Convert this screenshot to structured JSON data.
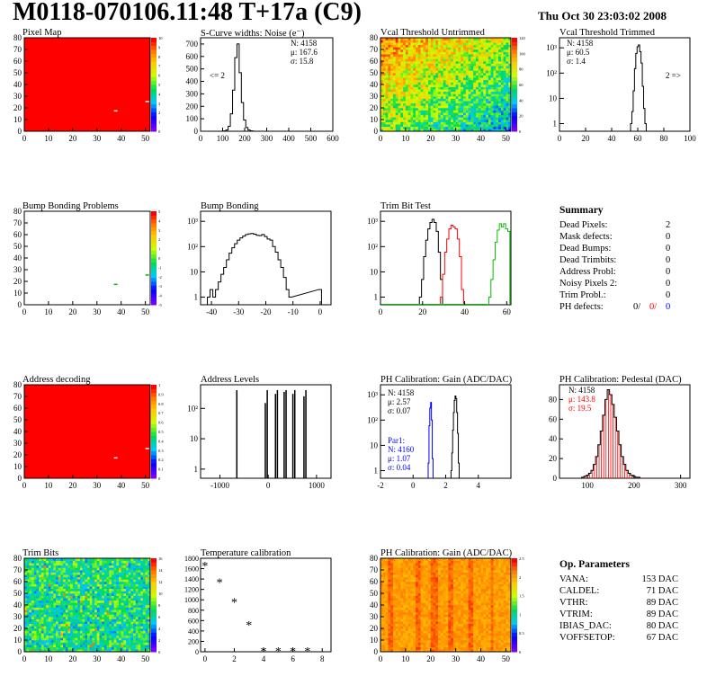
{
  "header": {
    "title": "M0118-070106.11:48 T+17a (C9)",
    "date": "Thu Oct 30 23:03:02 2008"
  },
  "colors": {
    "red": "#ff0000",
    "blue": "#0000ff",
    "black": "#000000",
    "green": "#00c000"
  },
  "panels": {
    "pixel_map": {
      "title": "Pixel Map"
    },
    "scurve": {
      "title": "S-Curve widths: Noise (e⁻)",
      "stats": [
        "N: 4158",
        "μ: 167.6",
        "σ: 15.8"
      ],
      "arrow": "<= 2"
    },
    "vcal_untrimmed": {
      "title": "Vcal Threshold Untrimmed"
    },
    "vcal_trimmed": {
      "title": "Vcal Threshold Trimmed",
      "stats": [
        "N: 4158",
        "μ: 60.5",
        "σ: 1.4"
      ],
      "arrow": "2 =>"
    },
    "bump_problems": {
      "title": "Bump Bonding Problems"
    },
    "bump_bonding": {
      "title": "Bump Bonding"
    },
    "trim_bit_test": {
      "title": "Trim Bit Test"
    },
    "address_decoding": {
      "title": "Address decoding"
    },
    "address_levels": {
      "title": "Address Levels"
    },
    "ph_gain_hist": {
      "title": "PH Calibration: Gain (ADC/DAC)",
      "stats": [
        "N: 4158",
        "μ: 2.57",
        "σ: 0.07"
      ],
      "par1": [
        "Par1:",
        "N: 4160",
        "μ: 1.07",
        "σ: 0.04"
      ]
    },
    "ph_pedestal": {
      "title": "PH Calibration: Pedestal (DAC)",
      "stats": [
        "N: 4158",
        "μ: 143.8",
        "σ: 19.5"
      ]
    },
    "trim_bits": {
      "title": "Trim Bits"
    },
    "temperature": {
      "title": "Temperature calibration"
    },
    "ph_gain_map": {
      "title": "PH Calibration: Gain (ADC/DAC)"
    }
  },
  "summary": {
    "heading": "Summary",
    "rows": [
      {
        "label": "Dead Pixels:",
        "value": "2"
      },
      {
        "label": "Mask defects:",
        "value": "0"
      },
      {
        "label": "Dead Bumps:",
        "value": "0"
      },
      {
        "label": "Dead Trimbits:",
        "value": "0"
      },
      {
        "label": "Address Probl:",
        "value": "0"
      },
      {
        "label": "Noisy Pixels 2:",
        "value": "0"
      },
      {
        "label": "Trim Probl.:",
        "value": "0"
      }
    ],
    "ph_defects": {
      "label": "PH defects:",
      "v1": "0/",
      "v2": "0/",
      "v3": "0"
    }
  },
  "op_params": {
    "heading": "Op. Parameters",
    "rows": [
      {
        "label": "VANA:",
        "value": "153 DAC"
      },
      {
        "label": "CALDEL:",
        "value": "71 DAC"
      },
      {
        "label": "VTHR:",
        "value": "89 DAC"
      },
      {
        "label": "VTRIM:",
        "value": "89 DAC"
      },
      {
        "label": "IBIAS_DAC:",
        "value": "80 DAC"
      },
      {
        "label": "VOFFSETOP:",
        "value": "67 DAC"
      }
    ]
  },
  "chart_data": [
    {
      "id": "pixel_map",
      "type": "heatmap",
      "x_ticks": [
        "0",
        "10",
        "20",
        "30",
        "40",
        "50"
      ],
      "y_ticks": [
        "0",
        "10",
        "20",
        "30",
        "40",
        "50",
        "60",
        "70",
        "80"
      ],
      "z_ticks": [
        "0",
        "1",
        "2",
        "3",
        "4",
        "5",
        "6",
        "7",
        "8",
        "9",
        "10"
      ],
      "dead_pixels": [
        [
          37,
          18
        ],
        [
          50,
          26
        ]
      ]
    },
    {
      "id": "scurve",
      "type": "bar",
      "x_ticks": [
        "0",
        "100",
        "200",
        "300",
        "400",
        "500",
        "600"
      ],
      "y_ticks": [
        "0",
        "100",
        "200",
        "300",
        "400",
        "500",
        "600",
        "700"
      ],
      "xlim": [
        0,
        600
      ],
      "ylim": [
        0,
        750
      ],
      "x": [
        100,
        110,
        120,
        130,
        140,
        150,
        160,
        170,
        180,
        190,
        200,
        210,
        220,
        230,
        240,
        250
      ],
      "values": [
        0,
        3,
        10,
        40,
        140,
        330,
        590,
        700,
        470,
        230,
        90,
        30,
        10,
        4,
        1,
        0
      ]
    },
    {
      "id": "vcal_untrimmed",
      "type": "heatmap",
      "x_ticks": [
        "0",
        "10",
        "20",
        "30",
        "40",
        "50"
      ],
      "y_ticks": [
        "0",
        "10",
        "20",
        "30",
        "40",
        "50",
        "60",
        "70",
        "80"
      ],
      "z_ticks": [
        "0",
        "20",
        "40",
        "60",
        "80",
        "100",
        "120"
      ]
    },
    {
      "id": "vcal_trimmed",
      "type": "bar",
      "x_ticks": [
        "0",
        "20",
        "40",
        "60",
        "80",
        "100"
      ],
      "y_ticks": [
        "1",
        "10",
        "10²",
        "10³"
      ],
      "scale_y": "log",
      "xlim": [
        0,
        100
      ],
      "ylim": [
        0.5,
        2500
      ],
      "x": [
        55,
        56,
        57,
        58,
        59,
        60,
        61,
        62,
        63,
        64,
        65,
        66
      ],
      "values": [
        1,
        3,
        20,
        150,
        600,
        1100,
        1300,
        700,
        250,
        30,
        4,
        1
      ]
    },
    {
      "id": "bump_problems",
      "type": "heatmap",
      "x_ticks": [
        "0",
        "10",
        "20",
        "30",
        "40",
        "50"
      ],
      "y_ticks": [
        "0",
        "10",
        "20",
        "30",
        "40",
        "50",
        "60",
        "70",
        "80"
      ],
      "z_ticks": [
        "-5",
        "-4",
        "-3",
        "-2",
        "-1",
        "0",
        "1",
        "2",
        "3",
        "4",
        "5"
      ],
      "marks": [
        [
          37,
          18
        ],
        [
          50,
          26
        ]
      ]
    },
    {
      "id": "bump_bonding",
      "type": "bar",
      "x_ticks": [
        "-40",
        "-30",
        "-20",
        "-10",
        "0"
      ],
      "y_ticks": [
        "1",
        "10",
        "10²",
        "10³"
      ],
      "scale_y": "log",
      "xlim": [
        -44,
        4
      ],
      "ylim": [
        0.5,
        2500
      ],
      "x": [
        -41,
        -40,
        -39,
        -38,
        -37,
        -36,
        -35,
        -34,
        -33,
        -32,
        -31,
        -30,
        -29,
        -28,
        -27,
        -26,
        -25,
        -24,
        -23,
        -22,
        -21,
        -20,
        -19,
        -18,
        -17,
        -16,
        -15,
        -14,
        -13,
        -12,
        -11,
        0
      ],
      "values": [
        1,
        2,
        1,
        2,
        4,
        8,
        15,
        30,
        55,
        90,
        130,
        180,
        220,
        260,
        300,
        320,
        330,
        310,
        280,
        270,
        300,
        250,
        200,
        180,
        100,
        60,
        30,
        15,
        6,
        2,
        1,
        2
      ]
    },
    {
      "id": "trim_bit_test",
      "type": "bar",
      "x_ticks": [
        "0",
        "20",
        "40",
        "60"
      ],
      "y_ticks": [
        "1",
        "10",
        "10²",
        "10³"
      ],
      "scale_y": "log",
      "xlim": [
        0,
        62
      ],
      "ylim": [
        0.5,
        2500
      ],
      "series": [
        {
          "name": "",
          "color": "#00c000",
          "x": [
            52,
            53,
            54,
            55,
            56,
            57,
            58,
            59,
            60,
            61
          ],
          "values": [
            1,
            5,
            30,
            150,
            450,
            800,
            600,
            800,
            500,
            400
          ]
        },
        {
          "name": "",
          "color": "#000000",
          "x": [
            19,
            20,
            21,
            22,
            23,
            24,
            25,
            26,
            27,
            28,
            29
          ],
          "values": [
            1,
            5,
            40,
            180,
            500,
            900,
            1200,
            900,
            400,
            60,
            5
          ]
        },
        {
          "name": "",
          "color": "#ff0000",
          "x": [
            29,
            30,
            31,
            32,
            33,
            34,
            35,
            36,
            37,
            38,
            39
          ],
          "values": [
            1,
            8,
            60,
            200,
            500,
            700,
            600,
            500,
            200,
            40,
            2
          ]
        }
      ]
    },
    {
      "id": "address_decoding",
      "type": "heatmap",
      "x_ticks": [
        "0",
        "10",
        "20",
        "30",
        "40",
        "50"
      ],
      "y_ticks": [
        "0",
        "10",
        "20",
        "30",
        "40",
        "50",
        "60",
        "70",
        "80"
      ],
      "z_ticks": [
        "0",
        "0.1",
        "0.2",
        "0.3",
        "0.4",
        "0.5",
        "0.6",
        "0.7",
        "0.8",
        "0.9",
        "1"
      ],
      "marks": [
        [
          37,
          18
        ],
        [
          50,
          26
        ]
      ]
    },
    {
      "id": "address_levels",
      "type": "bar",
      "x_ticks": [
        "-1000",
        "0",
        "1000"
      ],
      "y_ticks": [
        "1",
        "10",
        "10²"
      ],
      "scale_y": "log",
      "xlim": [
        -1400,
        1300
      ],
      "ylim": [
        0.5,
        600
      ],
      "x": [
        -650,
        -60,
        -20,
        150,
        190,
        330,
        370,
        510,
        550,
        740,
        780
      ],
      "values": [
        400,
        150,
        400,
        300,
        400,
        350,
        400,
        300,
        400,
        250,
        400
      ]
    },
    {
      "id": "ph_gain_hist",
      "type": "bar",
      "x_ticks": [
        "-2",
        "0",
        "2",
        "4"
      ],
      "y_ticks": [
        "1",
        "10",
        "10²",
        "10³"
      ],
      "scale_y": "log",
      "xlim": [
        -2,
        6
      ],
      "ylim": [
        0.5,
        2500
      ],
      "series": [
        {
          "name": "",
          "color": "#000000",
          "x": [
            2.35,
            2.4,
            2.45,
            2.5,
            2.55,
            2.6,
            2.65,
            2.7,
            2.75,
            2.8
          ],
          "values": [
            1,
            5,
            40,
            200,
            600,
            900,
            700,
            200,
            30,
            2
          ]
        },
        {
          "name": "",
          "color": "#0000ff",
          "x": [
            0.95,
            1.0,
            1.05,
            1.1,
            1.15,
            1.2
          ],
          "values": [
            2,
            60,
            300,
            500,
            100,
            3
          ]
        }
      ]
    },
    {
      "id": "ph_pedestal",
      "type": "bar",
      "x_ticks": [
        "100",
        "200",
        "300"
      ],
      "y_ticks": [
        "0",
        "20",
        "40",
        "60",
        "80"
      ],
      "xlim": [
        40,
        320
      ],
      "ylim": [
        0,
        95
      ],
      "x": [
        90,
        95,
        100,
        105,
        110,
        115,
        120,
        125,
        130,
        135,
        140,
        145,
        150,
        155,
        160,
        165,
        170,
        175,
        180,
        185,
        190,
        195,
        200,
        205,
        210
      ],
      "values": [
        1,
        2,
        3,
        5,
        8,
        14,
        22,
        34,
        48,
        64,
        80,
        90,
        85,
        75,
        62,
        48,
        34,
        22,
        14,
        8,
        5,
        3,
        2,
        1,
        1
      ]
    },
    {
      "id": "trim_bits",
      "type": "heatmap",
      "x_ticks": [
        "0",
        "10",
        "20",
        "30",
        "40",
        "50"
      ],
      "y_ticks": [
        "0",
        "10",
        "20",
        "30",
        "40",
        "50",
        "60",
        "70",
        "80"
      ],
      "z_ticks": [
        "0",
        "2",
        "4",
        "6",
        "8",
        "10",
        "12",
        "14",
        "16"
      ]
    },
    {
      "id": "temperature",
      "type": "scatter",
      "x_ticks": [
        "0",
        "2",
        "4",
        "6",
        "8"
      ],
      "y_ticks": [
        "0",
        "200",
        "400",
        "600",
        "800",
        "1000",
        "1200",
        "1400",
        "1600",
        "1800"
      ],
      "xlim": [
        -0.3,
        8.6
      ],
      "ylim": [
        0,
        1800
      ],
      "x": [
        0,
        1,
        2,
        3,
        4,
        5,
        6,
        7
      ],
      "values": [
        1660,
        1340,
        960,
        520,
        20,
        20,
        20,
        20
      ]
    },
    {
      "id": "ph_gain_map",
      "type": "heatmap",
      "x_ticks": [
        "0",
        "10",
        "20",
        "30",
        "40",
        "50"
      ],
      "y_ticks": [
        "0",
        "10",
        "20",
        "30",
        "40",
        "50",
        "60",
        "70",
        "80"
      ],
      "z_ticks": [
        "0",
        "0.5",
        "1",
        "1.5",
        "2",
        "2.5"
      ]
    }
  ]
}
